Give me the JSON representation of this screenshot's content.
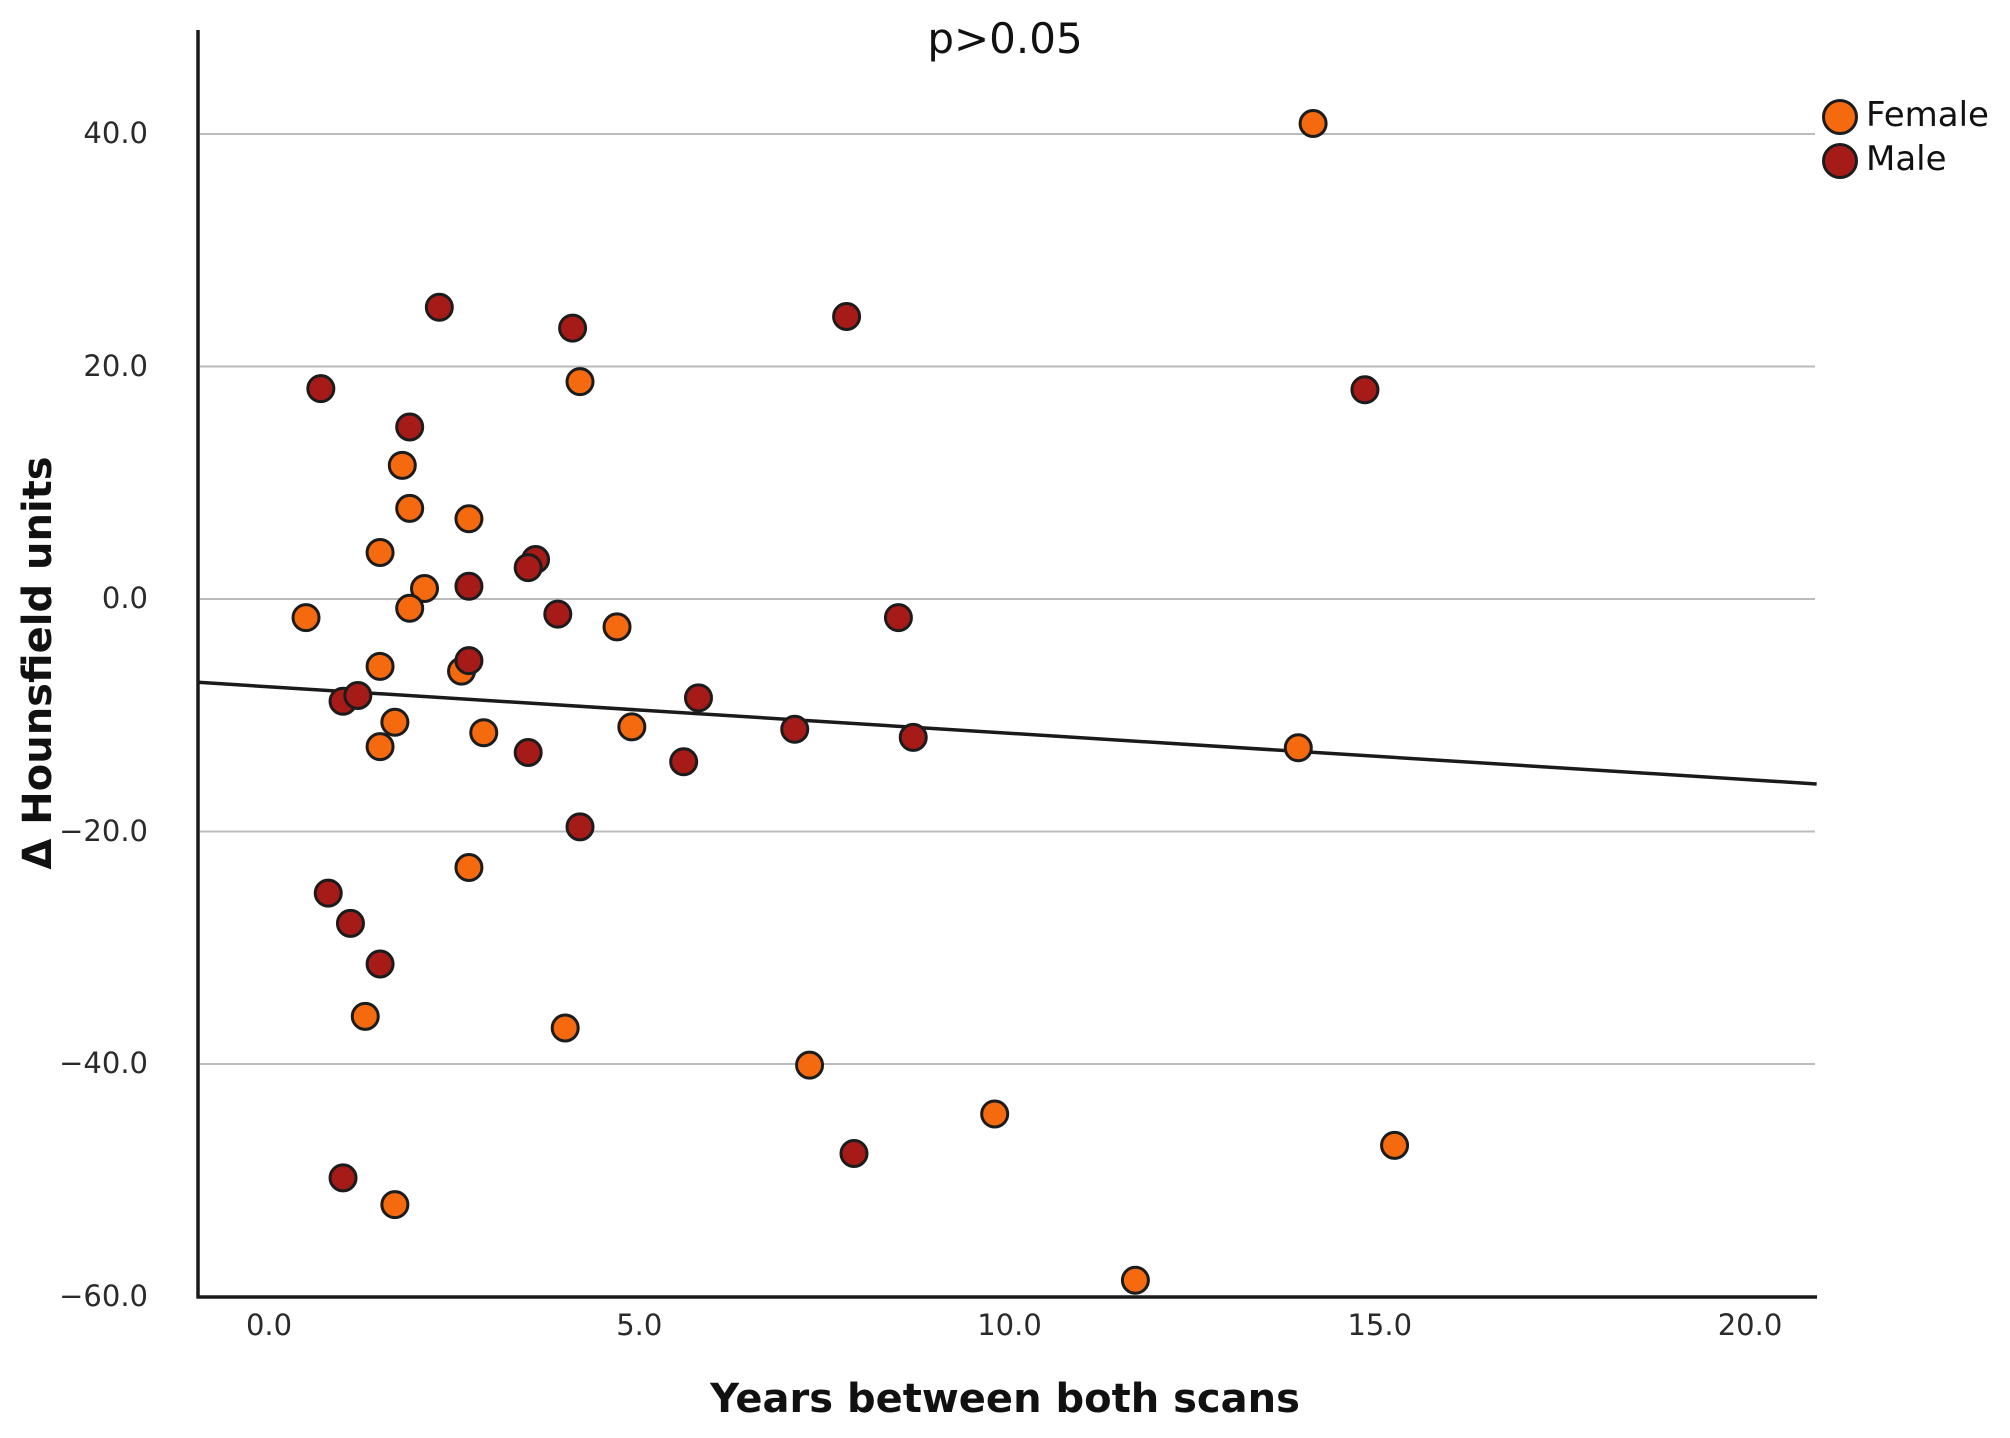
{
  "chart_data": {
    "type": "scatter",
    "title": "p>0.05",
    "xlabel": "Years between both scans",
    "ylabel": "Δ Hounsfield units",
    "x_tick_labels": [
      "0.0",
      "5.0",
      "10.0",
      "15.0",
      "20.0"
    ],
    "x_tick_values": [
      0,
      5,
      10,
      15,
      20
    ],
    "y_tick_labels": [
      "40.0",
      "20.0",
      "0.0",
      "−20.0",
      "−40.0",
      "−60.0"
    ],
    "y_tick_values": [
      40,
      20,
      0,
      -20,
      -40,
      -60
    ],
    "xlim": [
      -0.96,
      20.9
    ],
    "ylim": [
      -60,
      48.9
    ],
    "grid": "horizontal",
    "gridline_values": [
      40,
      20,
      0,
      -20,
      -40
    ],
    "legend_position": "top-right",
    "series": [
      {
        "name": "Female",
        "color": "#F5690F",
        "points": [
          [
            14.1,
            40.9
          ],
          [
            4.2,
            18.7
          ],
          [
            1.8,
            11.5
          ],
          [
            1.9,
            7.8
          ],
          [
            2.7,
            6.9
          ],
          [
            1.5,
            4.0
          ],
          [
            2.1,
            0.9
          ],
          [
            1.9,
            -0.8
          ],
          [
            0.5,
            -1.6
          ],
          [
            4.7,
            -2.4
          ],
          [
            1.5,
            -5.8
          ],
          [
            2.6,
            -6.2
          ],
          [
            1.7,
            -10.6
          ],
          [
            2.9,
            -11.5
          ],
          [
            1.5,
            -12.7
          ],
          [
            4.9,
            -11.0
          ],
          [
            13.9,
            -12.8
          ],
          [
            2.7,
            -23.1
          ],
          [
            1.3,
            -35.9
          ],
          [
            4.0,
            -36.9
          ],
          [
            7.3,
            -40.1
          ],
          [
            9.8,
            -44.3
          ],
          [
            15.2,
            -47.0
          ],
          [
            1.7,
            -52.1
          ],
          [
            11.7,
            -58.6
          ]
        ]
      },
      {
        "name": "Male",
        "color": "#A61B17",
        "points": [
          [
            2.3,
            25.1
          ],
          [
            4.1,
            23.3
          ],
          [
            7.8,
            24.3
          ],
          [
            0.7,
            18.1
          ],
          [
            14.8,
            18.0
          ],
          [
            1.9,
            14.8
          ],
          [
            3.6,
            3.4
          ],
          [
            3.5,
            2.7
          ],
          [
            2.7,
            1.1
          ],
          [
            3.9,
            -1.3
          ],
          [
            8.5,
            -1.6
          ],
          [
            2.7,
            -5.3
          ],
          [
            1.0,
            -8.8
          ],
          [
            1.2,
            -8.3
          ],
          [
            3.5,
            -13.2
          ],
          [
            5.8,
            -8.5
          ],
          [
            5.6,
            -14.0
          ],
          [
            7.1,
            -11.2
          ],
          [
            8.7,
            -11.9
          ],
          [
            4.2,
            -19.6
          ],
          [
            0.8,
            -25.3
          ],
          [
            1.1,
            -27.9
          ],
          [
            1.5,
            -31.4
          ],
          [
            7.9,
            -47.7
          ],
          [
            1.0,
            -49.8
          ]
        ]
      }
    ],
    "regression_line": {
      "slope": -0.4,
      "intercept": -7.55,
      "color": "#1a1a1a"
    }
  },
  "legend": {
    "items": [
      {
        "label": "Female",
        "color": "#F5690F"
      },
      {
        "label": "Male",
        "color": "#A61B17"
      }
    ]
  },
  "style": {
    "point_stroke": "#1c1c1c",
    "axis_color": "#1a1a1a",
    "grid_color": "#bbbbbb"
  }
}
